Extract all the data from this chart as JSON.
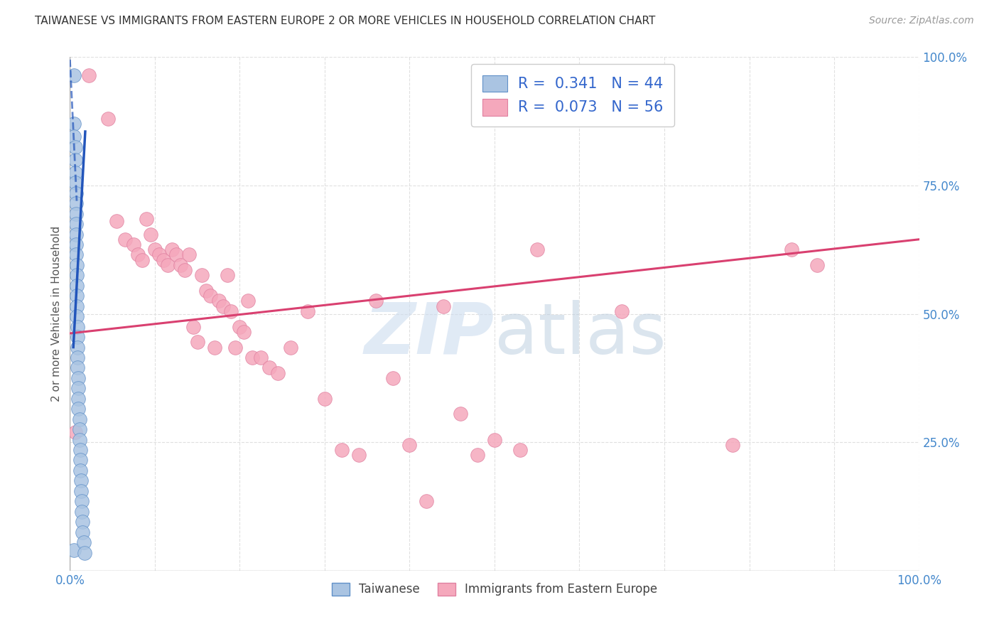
{
  "title": "TAIWANESE VS IMMIGRANTS FROM EASTERN EUROPE 2 OR MORE VEHICLES IN HOUSEHOLD CORRELATION CHART",
  "source": "Source: ZipAtlas.com",
  "ylabel": "2 or more Vehicles in Household",
  "xmin": 0.0,
  "xmax": 1.0,
  "ymin": 0.0,
  "ymax": 1.0,
  "xticks": [
    0.0,
    0.1,
    0.2,
    0.3,
    0.4,
    0.5,
    0.6,
    0.7,
    0.8,
    0.9,
    1.0
  ],
  "xticklabels": [
    "0.0%",
    "",
    "",
    "",
    "",
    "",
    "",
    "",
    "",
    "",
    "100.0%"
  ],
  "ytick_positions": [
    0.0,
    0.25,
    0.5,
    0.75,
    1.0
  ],
  "yticklabels": [
    "",
    "25.0%",
    "50.0%",
    "75.0%",
    "100.0%"
  ],
  "blue_color": "#aac4e2",
  "pink_color": "#f5a8bc",
  "trendline_blue": "#2255bb",
  "trendline_pink": "#d94070",
  "grid_color": "#e0e0e0",
  "blue_scatter_x": [
    0.005,
    0.005,
    0.005,
    0.005,
    0.006,
    0.006,
    0.006,
    0.006,
    0.007,
    0.007,
    0.007,
    0.007,
    0.007,
    0.007,
    0.007,
    0.008,
    0.008,
    0.008,
    0.008,
    0.008,
    0.008,
    0.009,
    0.009,
    0.009,
    0.009,
    0.009,
    0.01,
    0.01,
    0.01,
    0.01,
    0.011,
    0.011,
    0.011,
    0.012,
    0.012,
    0.012,
    0.013,
    0.013,
    0.014,
    0.014,
    0.015,
    0.015,
    0.016,
    0.017
  ],
  "blue_scatter_y": [
    0.965,
    0.04,
    0.87,
    0.845,
    0.825,
    0.8,
    0.775,
    0.755,
    0.735,
    0.715,
    0.695,
    0.675,
    0.655,
    0.635,
    0.615,
    0.595,
    0.575,
    0.555,
    0.535,
    0.515,
    0.495,
    0.475,
    0.455,
    0.435,
    0.415,
    0.395,
    0.375,
    0.355,
    0.335,
    0.315,
    0.295,
    0.275,
    0.255,
    0.235,
    0.215,
    0.195,
    0.175,
    0.155,
    0.135,
    0.115,
    0.095,
    0.075,
    0.055,
    0.035
  ],
  "pink_scatter_x": [
    0.006,
    0.022,
    0.045,
    0.055,
    0.065,
    0.075,
    0.08,
    0.085,
    0.09,
    0.095,
    0.1,
    0.105,
    0.11,
    0.115,
    0.12,
    0.125,
    0.13,
    0.135,
    0.14,
    0.145,
    0.15,
    0.155,
    0.16,
    0.165,
    0.17,
    0.175,
    0.18,
    0.185,
    0.19,
    0.195,
    0.2,
    0.205,
    0.21,
    0.215,
    0.225,
    0.235,
    0.245,
    0.26,
    0.28,
    0.3,
    0.32,
    0.34,
    0.36,
    0.38,
    0.4,
    0.42,
    0.44,
    0.46,
    0.48,
    0.5,
    0.53,
    0.55,
    0.65,
    0.78,
    0.85,
    0.88
  ],
  "pink_scatter_y": [
    0.27,
    0.965,
    0.88,
    0.68,
    0.645,
    0.635,
    0.615,
    0.605,
    0.685,
    0.655,
    0.625,
    0.615,
    0.605,
    0.595,
    0.625,
    0.615,
    0.595,
    0.585,
    0.615,
    0.475,
    0.445,
    0.575,
    0.545,
    0.535,
    0.435,
    0.525,
    0.515,
    0.575,
    0.505,
    0.435,
    0.475,
    0.465,
    0.525,
    0.415,
    0.415,
    0.395,
    0.385,
    0.435,
    0.505,
    0.335,
    0.235,
    0.225,
    0.525,
    0.375,
    0.245,
    0.135,
    0.515,
    0.305,
    0.225,
    0.255,
    0.235,
    0.625,
    0.505,
    0.245,
    0.625,
    0.595
  ],
  "pink_trend_x0": 0.0,
  "pink_trend_x1": 1.0,
  "pink_trend_y0": 0.462,
  "pink_trend_y1": 0.645,
  "blue_trend_solid_x0": 0.004,
  "blue_trend_solid_x1": 0.018,
  "blue_trend_solid_y0": 0.435,
  "blue_trend_solid_y1": 0.855,
  "blue_trend_dashed_x0": 0.0,
  "blue_trend_dashed_x1": 0.008,
  "blue_trend_dashed_y0": 0.995,
  "blue_trend_dashed_y1": 0.72
}
